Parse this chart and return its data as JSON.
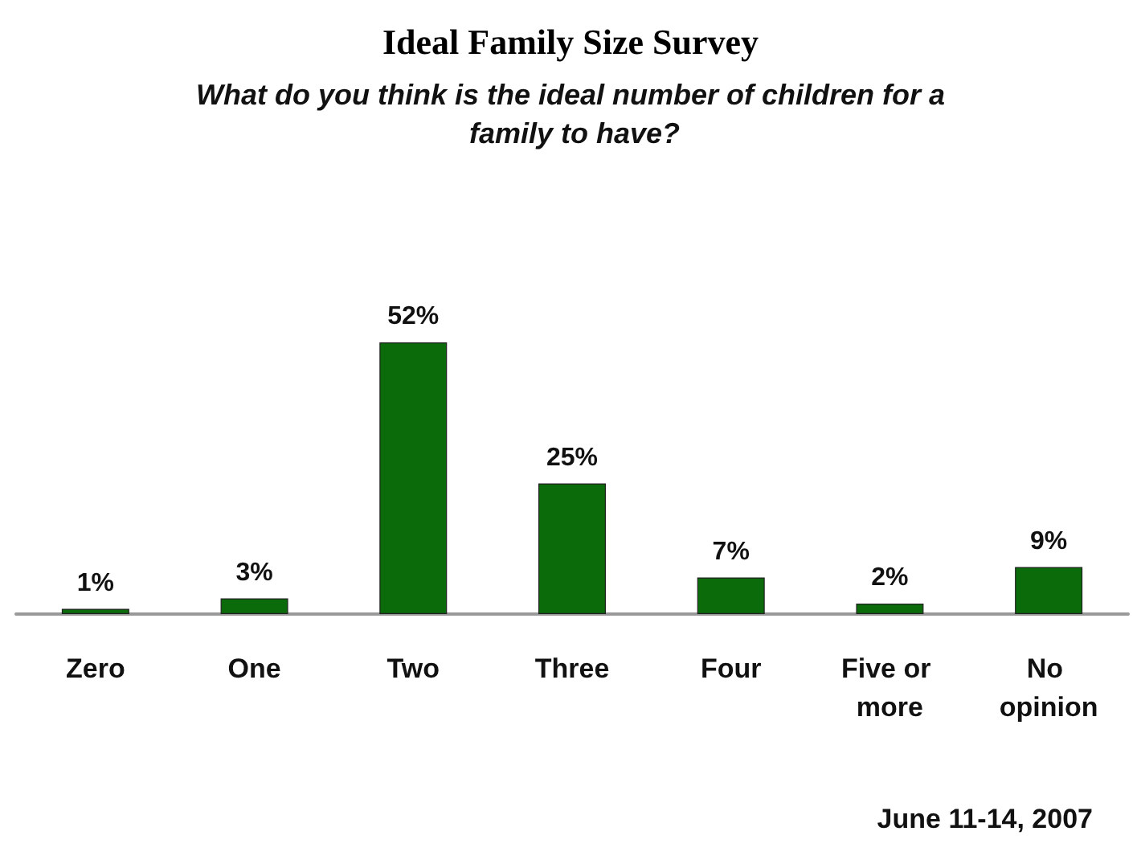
{
  "chart_data": {
    "type": "bar",
    "title": "Ideal Family Size Survey",
    "subtitle": "What do you think is the ideal number of children for a family to have?",
    "categories": [
      "Zero",
      "One",
      "Two",
      "Three",
      "Four",
      "Five or more",
      "No opinion"
    ],
    "values": [
      1,
      3,
      52,
      25,
      7,
      2,
      9
    ],
    "value_labels": [
      "1%",
      "3%",
      "52%",
      "25%",
      "7%",
      "2%",
      "9%"
    ],
    "color": "#0b6b0b",
    "annotations": [
      "June 11-14, 2007"
    ]
  }
}
